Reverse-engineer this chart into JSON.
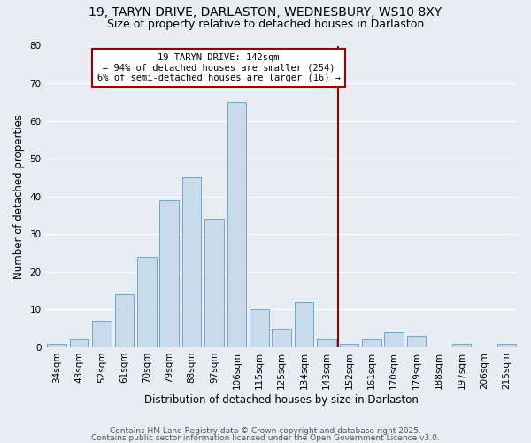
{
  "title1": "19, TARYN DRIVE, DARLASTON, WEDNESBURY, WS10 8XY",
  "title2": "Size of property relative to detached houses in Darlaston",
  "xlabel": "Distribution of detached houses by size in Darlaston",
  "ylabel": "Number of detached properties",
  "categories": [
    "34sqm",
    "43sqm",
    "52sqm",
    "61sqm",
    "70sqm",
    "79sqm",
    "88sqm",
    "97sqm",
    "106sqm",
    "115sqm",
    "125sqm",
    "134sqm",
    "143sqm",
    "152sqm",
    "161sqm",
    "170sqm",
    "179sqm",
    "188sqm",
    "197sqm",
    "206sqm",
    "215sqm"
  ],
  "values": [
    1,
    2,
    7,
    14,
    24,
    39,
    45,
    34,
    65,
    10,
    5,
    12,
    2,
    1,
    2,
    4,
    3,
    0,
    1,
    0,
    1
  ],
  "bar_color": "#c9daea",
  "bar_edge_color": "#6aaaca",
  "background_color": "#e8edf4",
  "grid_color": "#ffffff",
  "red_line_x": 12.5,
  "annotation_title": "19 TARYN DRIVE: 142sqm",
  "annotation_line1": "← 94% of detached houses are smaller (254)",
  "annotation_line2": "6% of semi-detached houses are larger (16) →",
  "footer1": "Contains HM Land Registry data © Crown copyright and database right 2025.",
  "footer2": "Contains public sector information licensed under the Open Government Licence v3.0.",
  "ylim": [
    0,
    80
  ],
  "yticks": [
    0,
    10,
    20,
    30,
    40,
    50,
    60,
    70,
    80
  ],
  "title_fontsize": 10,
  "subtitle_fontsize": 9,
  "axis_label_fontsize": 8.5,
  "tick_fontsize": 7.5,
  "footer_fontsize": 6.5,
  "annotation_fontsize": 7.5
}
